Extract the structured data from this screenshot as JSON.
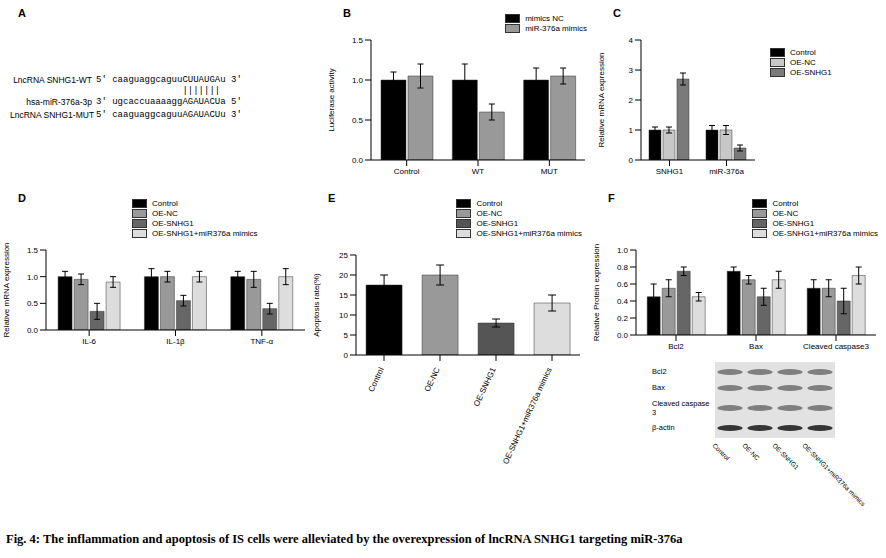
{
  "caption": "Fig. 4: The inflammation and apoptosis of IS cells were alleviated by the overexpression of lncRNA SNHG1 targeting miR-376a",
  "sequences": {
    "panel": "A",
    "rows": [
      {
        "label": "LncRNA SNHG1-WT",
        "sequence": "5' caaguaggcaguuCUUAUGAu 3'"
      },
      {
        "label": "hsa-miR-376a-3p",
        "sequence": "3' ugcaccuaaaaggAGAUACUa 5'"
      },
      {
        "label": "LncRNA SNHG1-MUT",
        "sequence": "5' caaguaggcaguuAGAUACUu 3'"
      }
    ],
    "pairing": "|||||||"
  },
  "chart_data": [
    {
      "panel": "B",
      "type": "bar",
      "y_label": "Luciferase activity",
      "categories": [
        "Control",
        "WT",
        "MUT"
      ],
      "series": [
        {
          "name": "mimics NC",
          "color": "#000000",
          "values": [
            1.0,
            1.0,
            1.0
          ],
          "errors": [
            0.1,
            0.2,
            0.15
          ]
        },
        {
          "name": "miR-376a mimics",
          "color": "#999999",
          "values": [
            1.05,
            0.6,
            1.05
          ],
          "errors": [
            0.15,
            0.1,
            0.1
          ]
        }
      ],
      "ylim": [
        0,
        1.5
      ],
      "yticks": [
        {
          "value": 0,
          "label": "0.0"
        },
        0.5,
        {
          "value": 1,
          "label": "1.0"
        },
        1.5
      ],
      "legend": "upper right"
    },
    {
      "panel": "C",
      "type": "bar",
      "y_label": "Relative mRNA expression",
      "categories": [
        "SNHG1",
        "miR-376a"
      ],
      "series": [
        {
          "name": "Control",
          "color": "#000000",
          "values": [
            1.0,
            1.0
          ],
          "errors": [
            0.1,
            0.15
          ]
        },
        {
          "name": "OE-NC",
          "color": "#c8c8c8",
          "values": [
            1.0,
            1.0
          ],
          "errors": [
            0.1,
            0.15
          ]
        },
        {
          "name": "OE-SNHG1",
          "color": "#7a7a7a",
          "values": [
            2.7,
            0.4
          ],
          "errors": [
            0.2,
            0.1
          ]
        }
      ],
      "ylim": [
        0,
        4
      ],
      "yticks": [
        0,
        1,
        2,
        3,
        4
      ],
      "legend": "right"
    },
    {
      "panel": "D",
      "type": "bar",
      "y_label": "Relative mRNA expression",
      "categories": [
        "IL-6",
        "IL-1β",
        "TNF-α"
      ],
      "series": [
        {
          "name": "Control",
          "color": "#000000",
          "values": [
            1.0,
            1.0,
            1.0
          ],
          "errors": [
            0.1,
            0.15,
            0.1
          ]
        },
        {
          "name": "OE-NC",
          "color": "#999999",
          "values": [
            0.95,
            1.0,
            0.95
          ],
          "errors": [
            0.1,
            0.1,
            0.15
          ]
        },
        {
          "name": "OE-SNHG1",
          "color": "#666666",
          "values": [
            0.35,
            0.55,
            0.4
          ],
          "errors": [
            0.15,
            0.1,
            0.1
          ]
        },
        {
          "name": "OE-SNHG1+miR376a mimics",
          "color": "#dddddd",
          "values": [
            0.9,
            1.0,
            1.0
          ],
          "errors": [
            0.1,
            0.1,
            0.15
          ]
        }
      ],
      "ylim": [
        0,
        1.5
      ],
      "yticks": [
        {
          "value": 0,
          "label": "0.0"
        },
        0.5,
        {
          "value": 1,
          "label": "1.0"
        },
        1.5
      ],
      "legend": "top"
    },
    {
      "panel": "E",
      "type": "bar",
      "y_label": "Apoptosis rate(%)",
      "categories": [
        "Control",
        "OE-NC",
        "OE-SNHG1",
        "OE-SNHG1+miR376a mimics"
      ],
      "values": [
        17.5,
        20,
        8,
        13
      ],
      "errors": [
        2.5,
        2.5,
        1,
        2
      ],
      "colors": [
        "#000000",
        "#999999",
        "#555555",
        "#dddddd"
      ],
      "ylim": [
        0,
        25
      ],
      "yticks": [
        0,
        5,
        10,
        15,
        20,
        25
      ],
      "legend": "upper right"
    },
    {
      "panel": "F",
      "type": "bar",
      "y_label": "Relative Protein expression",
      "categories": [
        "Bcl2",
        "Bax",
        "Cleaved caspase3"
      ],
      "series": [
        {
          "name": "Control",
          "color": "#000000",
          "values": [
            0.45,
            0.75,
            0.55
          ],
          "errors": [
            0.15,
            0.05,
            0.1
          ]
        },
        {
          "name": "OE-NC",
          "color": "#999999",
          "values": [
            0.55,
            0.65,
            0.55
          ],
          "errors": [
            0.1,
            0.05,
            0.1
          ]
        },
        {
          "name": "OE-SNHG1",
          "color": "#666666",
          "values": [
            0.75,
            0.45,
            0.4
          ],
          "errors": [
            0.05,
            0.1,
            0.15
          ]
        },
        {
          "name": "OE-SNHG1+miR376a mimics",
          "color": "#dddddd",
          "values": [
            0.45,
            0.65,
            0.7
          ],
          "errors": [
            0.05,
            0.1,
            0.1
          ]
        }
      ],
      "ylim": [
        0,
        1
      ],
      "yticks": [
        {
          "value": 0,
          "label": "0.0"
        },
        0.2,
        0.4,
        0.6,
        0.8,
        {
          "value": 1,
          "label": "1.0"
        }
      ],
      "legend": "upper right"
    }
  ],
  "western_blot": {
    "bands": [
      "Bcl2",
      "Bax",
      "Cleaved caspase 3",
      "β-actin"
    ],
    "lanes": [
      "Control",
      "OE-NC",
      "OE-SNHG1",
      "OE-SNHG1+miR376a mimics"
    ]
  }
}
